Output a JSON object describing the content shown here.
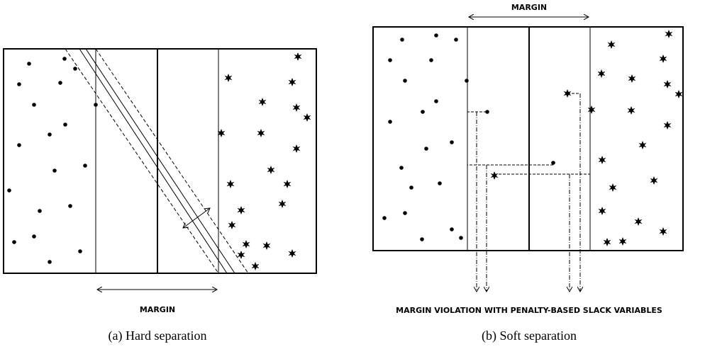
{
  "panel_a": {
    "margin_label": "MARGIN",
    "caption": "(a) Hard separation"
  },
  "panel_b": {
    "margin_label": "MARGIN",
    "violation_label": "MARGIN VIOLATION WITH PENALTY-BASED SLACK VARIABLES",
    "caption": "(b) Soft separation"
  }
}
